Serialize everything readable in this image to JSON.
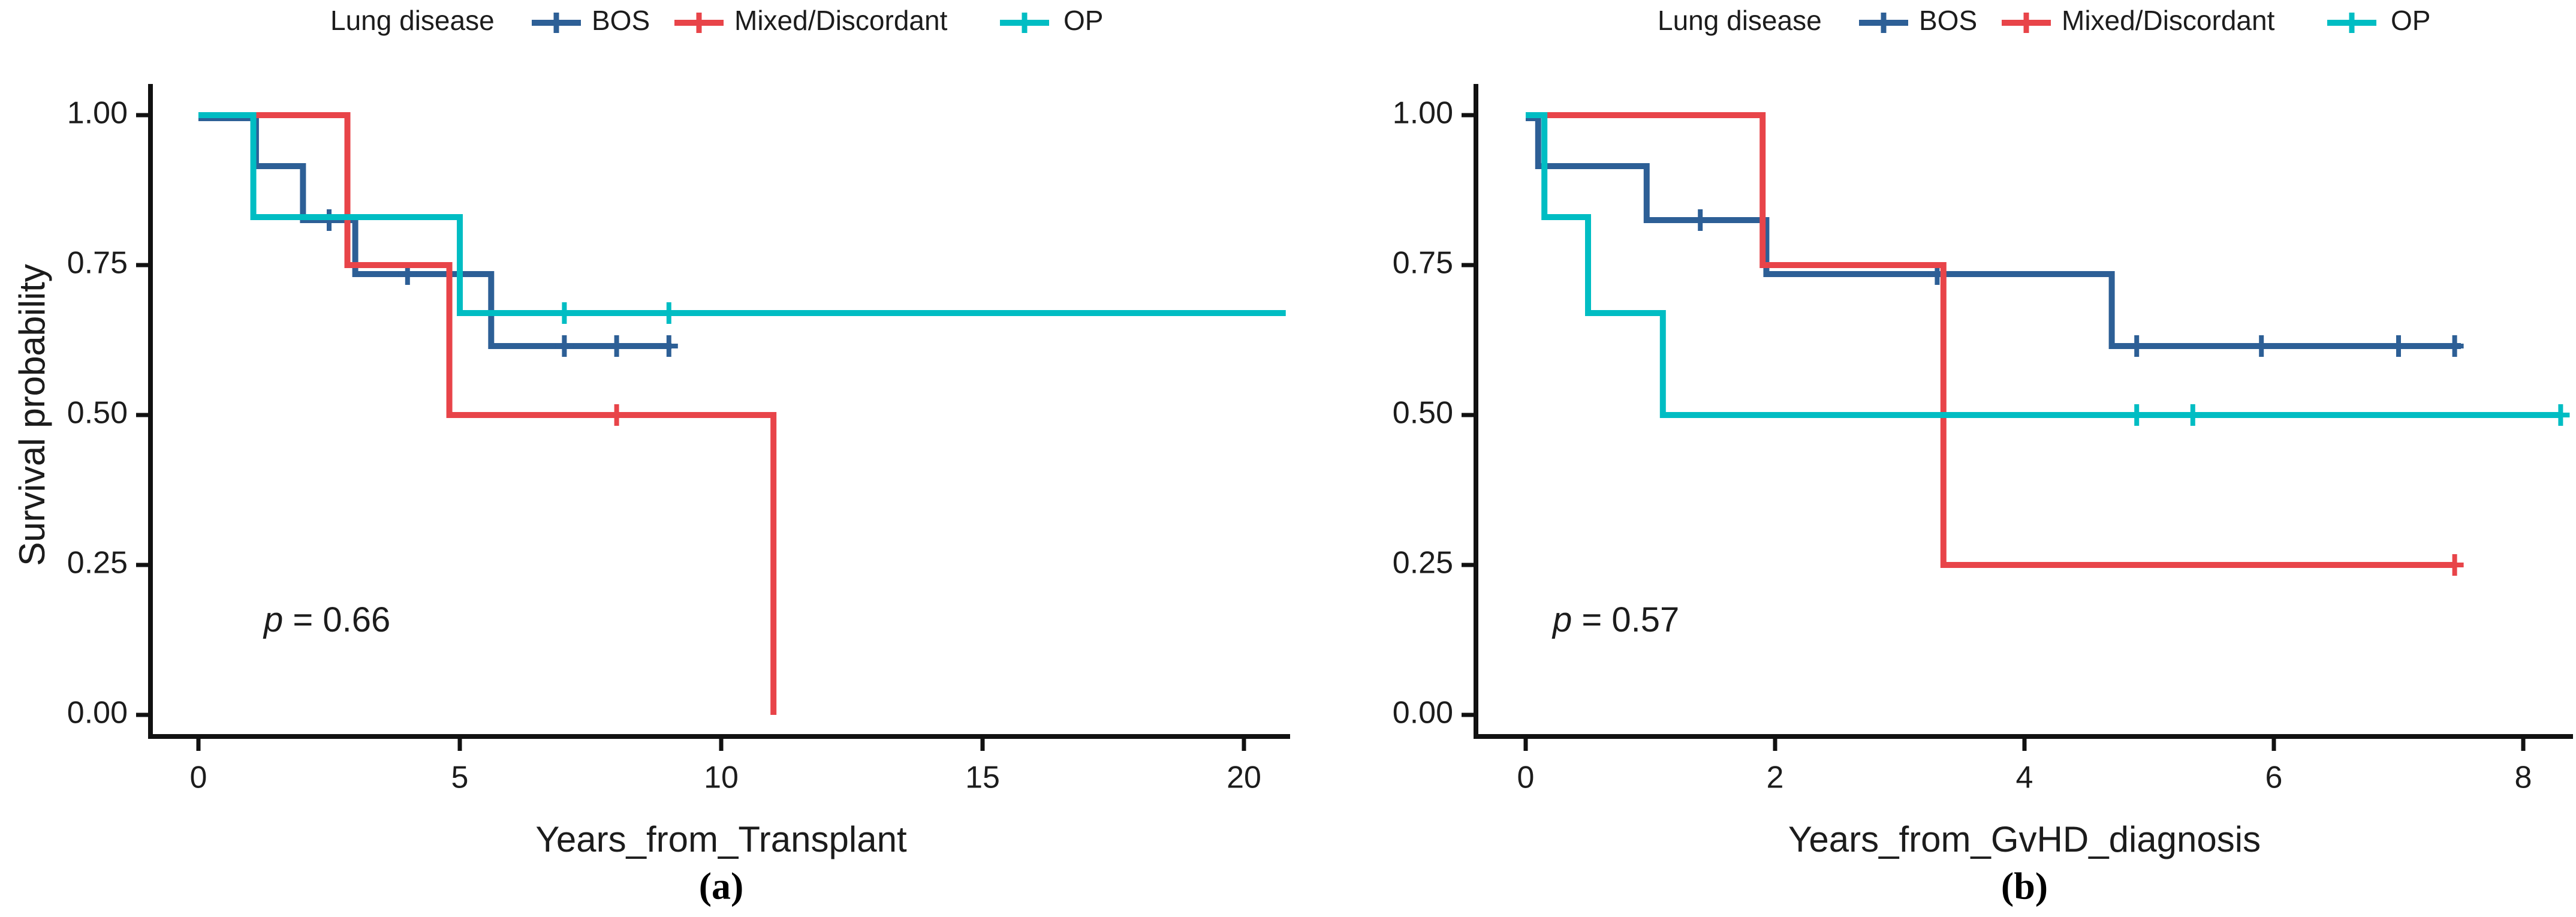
{
  "figure": {
    "background": "#ffffff"
  },
  "colors": {
    "bos": "#2D5F96",
    "mixed": "#E84449",
    "op": "#00BDC3",
    "axis": "#111111",
    "text": "#1c1c1c"
  },
  "legend": {
    "title": "Lung disease",
    "entries": [
      {
        "label": "BOS",
        "color_key": "bos"
      },
      {
        "label": "Mixed/Discordant",
        "color_key": "mixed"
      },
      {
        "label": "OP",
        "color_key": "op"
      }
    ]
  },
  "chart_data": [
    {
      "type": "line",
      "subtype": "kaplan-meier-step",
      "caption": "(a)",
      "xlabel": "Years_from_Transplant",
      "ylabel": "Survival probability",
      "p_value": "p = 0.66",
      "legend_position": "top",
      "grid": false,
      "xlim": [
        0,
        21
      ],
      "ylim": [
        0,
        1
      ],
      "xticks": [
        {
          "value": 0,
          "label": "0"
        },
        {
          "value": 5,
          "label": "5"
        },
        {
          "value": 10,
          "label": "10"
        },
        {
          "value": 15,
          "label": "15"
        },
        {
          "value": 20,
          "label": "20"
        }
      ],
      "yticks": [
        {
          "value": 1.0,
          "label": "1.00"
        },
        {
          "value": 0.75,
          "label": "0.75"
        },
        {
          "value": 0.5,
          "label": "0.50"
        },
        {
          "value": 0.25,
          "label": "0.25"
        },
        {
          "value": 0.0,
          "label": "0.00"
        }
      ],
      "series": [
        {
          "name": "BOS",
          "color_key": "bos",
          "steps": [
            [
              0,
              1.0
            ],
            [
              1.1,
              0.92
            ],
            [
              2.0,
              0.83
            ],
            [
              3.0,
              0.74
            ],
            [
              5.6,
              0.62
            ]
          ],
          "end_x": 9.05,
          "censors": [
            [
              2.5,
              0.83
            ],
            [
              4.0,
              0.74
            ],
            [
              7.0,
              0.62
            ],
            [
              8.0,
              0.62
            ],
            [
              9.0,
              0.62
            ]
          ]
        },
        {
          "name": "Mixed/Discordant",
          "color_key": "mixed",
          "steps": [
            [
              0,
              1.0
            ],
            [
              2.85,
              0.75
            ],
            [
              4.8,
              0.5
            ],
            [
              11.0,
              0.0
            ]
          ],
          "end_x": 11.0,
          "censors": [
            [
              8.0,
              0.5
            ]
          ]
        },
        {
          "name": "OP",
          "color_key": "op",
          "steps": [
            [
              0,
              1.0
            ],
            [
              1.05,
              0.83
            ],
            [
              5.0,
              0.67
            ]
          ],
          "end_x": 20.8,
          "censors": [
            [
              7.0,
              0.67
            ],
            [
              9.0,
              0.67
            ]
          ]
        }
      ]
    },
    {
      "type": "line",
      "subtype": "kaplan-meier-step",
      "caption": "(b)",
      "xlabel": "Years_from_GvHD_diagnosis",
      "ylabel": "Survival probability",
      "p_value": "p = 0.57",
      "legend_position": "top",
      "grid": false,
      "xlim": [
        0,
        8.4
      ],
      "ylim": [
        0,
        1
      ],
      "xticks": [
        {
          "value": 0,
          "label": "0"
        },
        {
          "value": 2,
          "label": "2"
        },
        {
          "value": 4,
          "label": "4"
        },
        {
          "value": 6,
          "label": "6"
        },
        {
          "value": 8,
          "label": "8"
        }
      ],
      "yticks": [
        {
          "value": 1.0,
          "label": "1.00"
        },
        {
          "value": 0.75,
          "label": "0.75"
        },
        {
          "value": 0.5,
          "label": "0.50"
        },
        {
          "value": 0.25,
          "label": "0.25"
        },
        {
          "value": 0.0,
          "label": "0.00"
        }
      ],
      "series": [
        {
          "name": "BOS",
          "color_key": "bos",
          "steps": [
            [
              0,
              1.0
            ],
            [
              0.1,
              0.92
            ],
            [
              0.97,
              0.83
            ],
            [
              1.93,
              0.74
            ],
            [
              4.7,
              0.62
            ]
          ],
          "end_x": 7.5,
          "censors": [
            [
              1.4,
              0.83
            ],
            [
              3.3,
              0.74
            ],
            [
              4.9,
              0.62
            ],
            [
              5.9,
              0.62
            ],
            [
              7.0,
              0.62
            ],
            [
              7.45,
              0.62
            ]
          ]
        },
        {
          "name": "Mixed/Discordant",
          "color_key": "mixed",
          "steps": [
            [
              0.05,
              1.0
            ],
            [
              1.9,
              0.75
            ],
            [
              3.35,
              0.25
            ]
          ],
          "end_x": 7.45,
          "censors": [
            [
              7.45,
              0.25
            ]
          ]
        },
        {
          "name": "OP",
          "color_key": "op",
          "steps": [
            [
              0,
              1.0
            ],
            [
              0.15,
              0.83
            ],
            [
              0.5,
              0.67
            ],
            [
              1.1,
              0.5
            ]
          ],
          "end_x": 8.3,
          "censors": [
            [
              4.9,
              0.5
            ],
            [
              5.35,
              0.5
            ],
            [
              8.3,
              0.5
            ]
          ]
        }
      ]
    }
  ]
}
